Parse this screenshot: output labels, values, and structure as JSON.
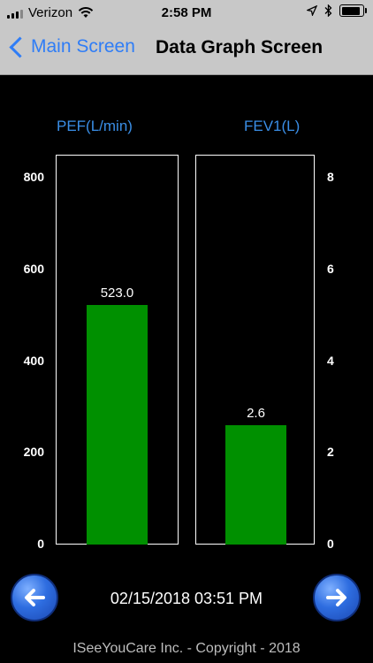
{
  "status_bar": {
    "carrier": "Verizon",
    "time": "2:58 PM"
  },
  "nav": {
    "back_label": "Main Screen",
    "title": "Data Graph Screen"
  },
  "chart_data": [
    {
      "type": "bar",
      "title": "PEF(L/min)",
      "categories": [
        "PEF"
      ],
      "values": [
        523.0
      ],
      "value_labels": [
        "523.0"
      ],
      "ylim": [
        0,
        800
      ],
      "yticks": [
        "0",
        "200",
        "400",
        "600",
        "800"
      ],
      "axis_side": "left",
      "bar_color": "#009000"
    },
    {
      "type": "bar",
      "title": "FEV1(L)",
      "categories": [
        "FEV1"
      ],
      "values": [
        2.6
      ],
      "value_labels": [
        "2.6"
      ],
      "ylim": [
        0,
        8
      ],
      "yticks": [
        "0",
        "2",
        "4",
        "6",
        "8"
      ],
      "axis_side": "right",
      "bar_color": "#009000"
    }
  ],
  "footer_date": "02/15/2018 03:51 PM",
  "copyright": "ISeeYouCare Inc. - Copyright - 2018",
  "colors": {
    "accent": "#2f7df6",
    "title_blue": "#3a8ee6",
    "bar_green": "#009000"
  },
  "icons": {
    "prev": "left-arrow-icon",
    "next": "right-arrow-icon"
  }
}
